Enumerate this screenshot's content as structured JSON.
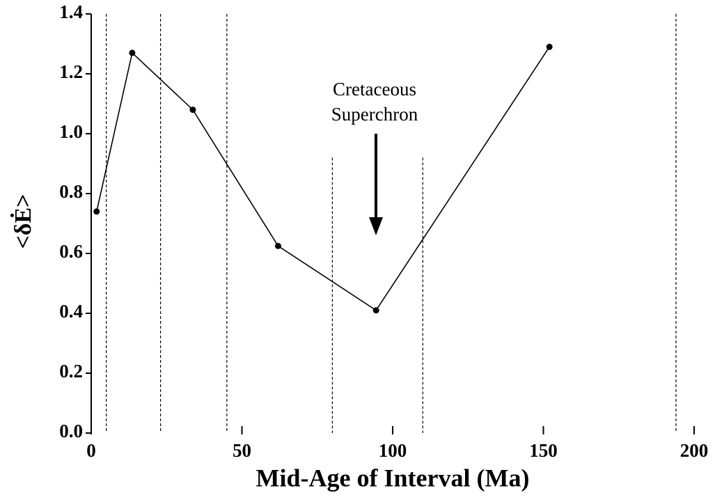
{
  "chart_data": {
    "type": "line",
    "xlabel": "Mid-Age of Interval (Ma)",
    "ylabel": "<δĖ>",
    "annotation": [
      "Cretaceous",
      "Superchron"
    ],
    "x": [
      1.8,
      13.6,
      33.7,
      62,
      94.5,
      152
    ],
    "series": [
      {
        "color": "#000000",
        "values": [
          0.74,
          1.27,
          1.08,
          0.625,
          0.41,
          1.29
        ]
      }
    ],
    "boundaries": [
      {
        "x": 5,
        "ymax": 1.4
      },
      {
        "x": 23,
        "ymax": 1.4
      },
      {
        "x": 45,
        "ymax": 1.4
      },
      {
        "x": 80,
        "ymax": 0.92
      },
      {
        "x": 110,
        "ymax": 0.92
      },
      {
        "x": 194,
        "ymax": 1.4
      }
    ],
    "xlim": [
      0,
      200
    ],
    "xticks": [
      0,
      50,
      100,
      150,
      200
    ],
    "ylim": [
      0,
      1.4
    ],
    "yticks": [
      {
        "value": 0,
        "label": "0.0"
      },
      {
        "value": 0.2,
        "label": "0.2"
      },
      {
        "value": 0.4,
        "label": "0.4"
      },
      {
        "value": 0.6,
        "label": "0.6"
      },
      {
        "value": 0.8,
        "label": "0.8"
      },
      {
        "value": 1.0,
        "label": "1.0"
      },
      {
        "value": 1.2,
        "label": "1.2"
      },
      {
        "value": 1.4,
        "label": "1.4"
      }
    ]
  }
}
